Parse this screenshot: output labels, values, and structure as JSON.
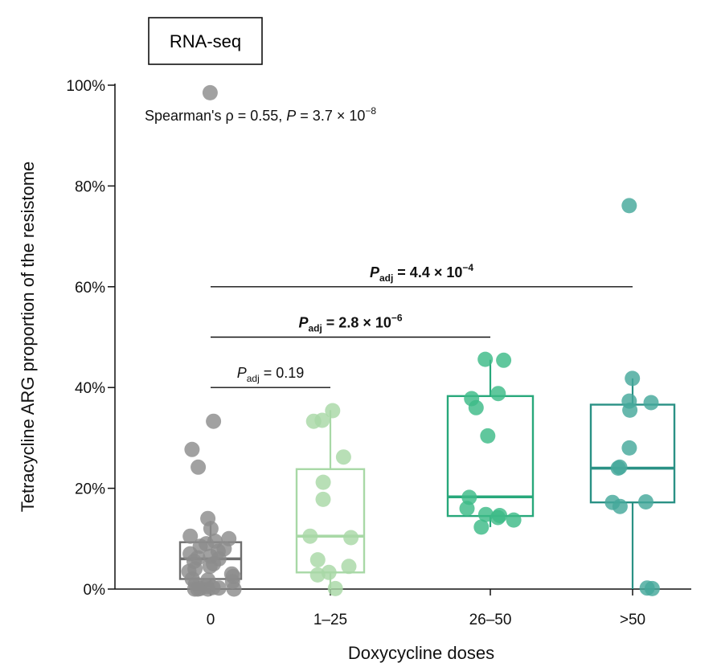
{
  "chart_data": {
    "type": "box+jitter",
    "panel_label": "RNA-seq",
    "xlabel": "Doxycycline doses",
    "ylabel": "Tetracycline ARG proportion of the resistome",
    "ylim": [
      0,
      100
    ],
    "yticks": [
      0,
      20,
      40,
      60,
      80,
      100
    ],
    "ytick_labels": [
      "0%",
      "20%",
      "40%",
      "60%",
      "80%",
      "100%"
    ],
    "categories": [
      "0",
      "1–25",
      "26–50",
      ">50"
    ],
    "correlation": {
      "prefix": "Spearman's ρ = 0.55, ",
      "p_symbol": "P",
      "p_mid": " = 3.7 × 10",
      "p_exp": "−8"
    },
    "groups": [
      {
        "name": "0",
        "color": "#8c8c8c",
        "box_stroke": "#6e6e6e",
        "box": {
          "q1": 2,
          "median": 6,
          "q3": 9.3,
          "whisker_low": 0,
          "whisker_high": 13.5
        },
        "points": [
          98.5,
          33.3,
          27.7,
          24.2,
          14,
          12,
          10.5,
          10,
          9.5,
          9,
          8.5,
          8,
          7.5,
          7,
          6.5,
          6.2,
          6,
          5.5,
          5,
          4.5,
          4,
          3.5,
          3,
          2.5,
          2,
          1.8,
          1.5,
          1,
          0.5,
          0.3,
          0.2,
          0.1,
          0,
          0,
          0,
          0
        ]
      },
      {
        "name": "1–25",
        "color": "#a8d8a6",
        "box_stroke": "#a8d8a6",
        "box": {
          "q1": 3.3,
          "median": 10.5,
          "q3": 23.8,
          "whisker_low": 0,
          "whisker_high": 35.5
        },
        "points": [
          35.4,
          33.5,
          33.3,
          26.2,
          21.2,
          17.8,
          10.5,
          10.2,
          5.8,
          4.5,
          3.3,
          2.8,
          0.1
        ]
      },
      {
        "name": "26–50",
        "color": "#3dbb88",
        "box_stroke": "#28a87b",
        "box": {
          "q1": 14.5,
          "median": 18.3,
          "q3": 38.3,
          "whisker_low": 12.3,
          "whisker_high": 45.5
        },
        "points": [
          45.6,
          45.4,
          38.8,
          37.8,
          36,
          30.4,
          18.2,
          16,
          14.8,
          14.6,
          14.2,
          13.7,
          12.3
        ]
      },
      {
        "name": ">50",
        "color": "#45a89b",
        "box_stroke": "#2a9185",
        "box": {
          "q1": 17.2,
          "median": 24,
          "q3": 36.6,
          "whisker_low": 0,
          "whisker_high": 41.8
        },
        "points": [
          76.1,
          41.8,
          37.3,
          37,
          35.5,
          28,
          24.2,
          24,
          17.3,
          17.2,
          16.4,
          0.2,
          0.1
        ]
      }
    ],
    "comparisons": [
      {
        "from": 0,
        "to": 1,
        "y": 40,
        "sub": "adj",
        "value": " = 0.19",
        "exp": "",
        "bold": false
      },
      {
        "from": 0,
        "to": 2,
        "y": 50,
        "sub": "adj",
        "value": " = 2.8 × 10",
        "exp": "−6",
        "bold": true
      },
      {
        "from": 0,
        "to": 3,
        "y": 60,
        "sub": "adj",
        "value": " = 4.4 × 10",
        "exp": "−4",
        "bold": true
      }
    ],
    "comparison_symbol": "P"
  }
}
